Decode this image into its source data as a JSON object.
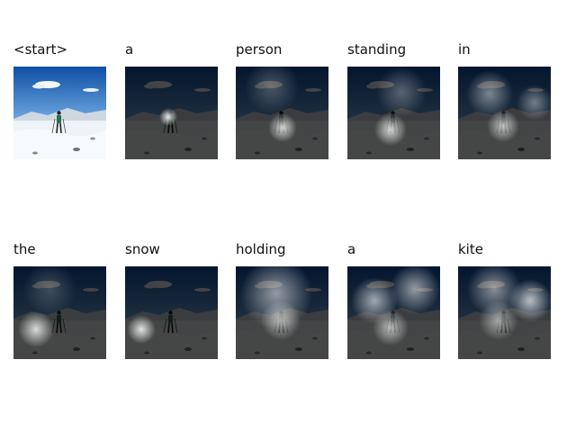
{
  "panels": [
    {
      "word": "<start>",
      "kind": "original"
    },
    {
      "word": "a",
      "kind": "attention"
    },
    {
      "word": "person",
      "kind": "attention"
    },
    {
      "word": "standing",
      "kind": "attention"
    },
    {
      "word": "in",
      "kind": "attention"
    },
    {
      "word": "the",
      "kind": "attention"
    },
    {
      "word": "snow",
      "kind": "attention"
    },
    {
      "word": "holding",
      "kind": "attention"
    },
    {
      "word": "a",
      "kind": "attention"
    },
    {
      "word": "kite",
      "kind": "attention"
    }
  ],
  "colors": {
    "sky_top": "#0f4fa6",
    "sky_bottom": "#6ea8e0",
    "snow": "#eef3f7",
    "mountain": "#cfd8e0",
    "dim_overlay": "#000000"
  }
}
